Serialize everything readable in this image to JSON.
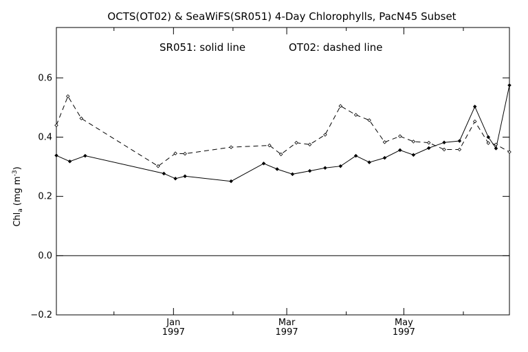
{
  "chart_data": {
    "type": "line",
    "title": "OCTS(OT02) & SeaWiFS(SR051) 4-Day Chlorophylls, PacN45 Subset",
    "annotation_left": "SR051: solid line",
    "annotation_right": "OT02: dashed line",
    "ylabel_main": "Chl",
    "ylabel_sub": "a",
    "ylabel_unit_open": "(mg m",
    "ylabel_unit_sup": "-3",
    "ylabel_unit_close": ")",
    "ylim": [
      -0.2,
      0.77
    ],
    "xlim": [
      "1996-11-01",
      "1997-06-25"
    ],
    "y_ticks": [
      {
        "value": -0.2,
        "label": "-0.2"
      },
      {
        "value": 0.0,
        "label": "0.0"
      },
      {
        "value": 0.2,
        "label": "0.2"
      },
      {
        "value": 0.4,
        "label": "0.4"
      },
      {
        "value": 0.6,
        "label": "0.6"
      }
    ],
    "x_ticks": [
      {
        "date": "1997-01-01",
        "month": "Jan",
        "year": "1997"
      },
      {
        "date": "1997-03-01",
        "month": "Mar",
        "year": "1997"
      },
      {
        "date": "1997-05-01",
        "month": "May",
        "year": "1997"
      }
    ],
    "x_minor_ticks": [
      "1996-12-01",
      "1997-02-01",
      "1997-04-01",
      "1997-06-01"
    ],
    "zero_line": 0.0,
    "series": [
      {
        "style": "solid",
        "points": [
          [
            "1996-11-01",
            0.338
          ],
          [
            "1996-11-08",
            0.318
          ],
          [
            "1996-11-16",
            0.337
          ],
          [
            "1996-12-27",
            0.277
          ],
          [
            "1997-01-02",
            0.26
          ],
          [
            "1997-01-07",
            0.268
          ],
          [
            "1997-01-31",
            0.251
          ],
          [
            "1997-02-17",
            0.311
          ],
          [
            "1997-02-24",
            0.292
          ],
          [
            "1997-03-04",
            0.275
          ],
          [
            "1997-03-13",
            0.286
          ],
          [
            "1997-03-21",
            0.296
          ],
          [
            "1997-03-29",
            0.302
          ],
          [
            "1997-04-06",
            0.337
          ],
          [
            "1997-04-13",
            0.315
          ],
          [
            "1997-04-21",
            0.33
          ],
          [
            "1997-04-29",
            0.356
          ],
          [
            "1997-05-06",
            0.34
          ],
          [
            "1997-05-14",
            0.363
          ],
          [
            "1997-05-22",
            0.382
          ],
          [
            "1997-05-30",
            0.387
          ],
          [
            "1997-06-07",
            0.503
          ],
          [
            "1997-06-14",
            0.4
          ],
          [
            "1997-06-18",
            0.362
          ],
          [
            "1997-06-25",
            0.575
          ]
        ]
      },
      {
        "style": "dashed",
        "points": [
          [
            "1996-11-01",
            0.44
          ],
          [
            "1996-11-07",
            0.538
          ],
          [
            "1996-11-14",
            0.463
          ],
          [
            "1996-12-24",
            0.302
          ],
          [
            "1997-01-02",
            0.345
          ],
          [
            "1997-01-07",
            0.344
          ],
          [
            "1997-01-31",
            0.366
          ],
          [
            "1997-02-20",
            0.372
          ],
          [
            "1997-02-26",
            0.342
          ],
          [
            "1997-03-06",
            0.381
          ],
          [
            "1997-03-13",
            0.375
          ],
          [
            "1997-03-21",
            0.408
          ],
          [
            "1997-03-29",
            0.505
          ],
          [
            "1997-04-06",
            0.475
          ],
          [
            "1997-04-13",
            0.457
          ],
          [
            "1997-04-21",
            0.383
          ],
          [
            "1997-04-29",
            0.403
          ],
          [
            "1997-05-06",
            0.385
          ],
          [
            "1997-05-14",
            0.381
          ],
          [
            "1997-05-22",
            0.358
          ],
          [
            "1997-05-30",
            0.358
          ],
          [
            "1997-06-07",
            0.453
          ],
          [
            "1997-06-14",
            0.38
          ],
          [
            "1997-06-18",
            0.375
          ],
          [
            "1997-06-25",
            0.35
          ]
        ]
      }
    ]
  }
}
